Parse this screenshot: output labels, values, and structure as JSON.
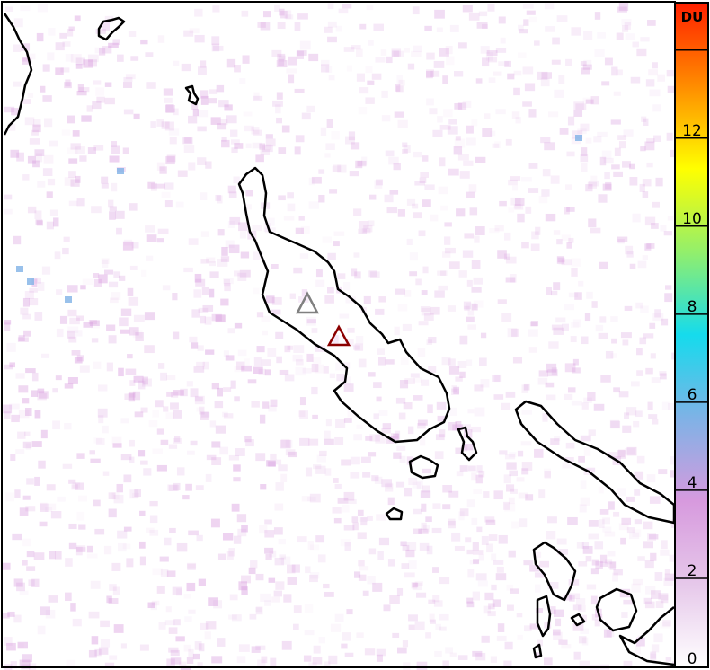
{
  "colorbar": {
    "unit_label": "DU",
    "range": [
      0,
      15
    ],
    "ticks": [
      {
        "value": 0,
        "label": "0"
      },
      {
        "value": 2,
        "label": "2"
      },
      {
        "value": 4,
        "label": "4"
      },
      {
        "value": 6,
        "label": "6"
      },
      {
        "value": 8,
        "label": "8"
      },
      {
        "value": 10,
        "label": "10"
      },
      {
        "value": 12,
        "label": "12"
      },
      {
        "value": 14,
        "label": ""
      }
    ],
    "color_stops": [
      "#ffffff",
      "#e6c8ea",
      "#d79ade",
      "#7fb2e6",
      "#15dbed",
      "#93ef6b",
      "#ffff00",
      "#ff8c00",
      "#ff2000"
    ]
  },
  "markers": [
    {
      "name": "volcano-gray",
      "color": "#808080",
      "icon": "triangle-outline"
    },
    {
      "name": "volcano-red",
      "color": "#8b0000",
      "icon": "triangle-outline"
    }
  ],
  "coastline_color": "#000000",
  "background_signal_color": "#d79ade"
}
